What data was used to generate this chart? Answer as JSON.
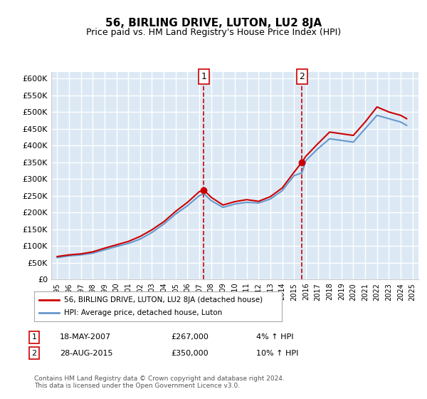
{
  "title": "56, BIRLING DRIVE, LUTON, LU2 8JA",
  "subtitle": "Price paid vs. HM Land Registry's House Price Index (HPI)",
  "legend_line1": "56, BIRLING DRIVE, LUTON, LU2 8JA (detached house)",
  "legend_line2": "HPI: Average price, detached house, Luton",
  "annotation1_label": "1",
  "annotation1_date": "18-MAY-2007",
  "annotation1_price": "£267,000",
  "annotation1_hpi": "4% ↑ HPI",
  "annotation1_year": 2007.38,
  "annotation1_value": 267000,
  "annotation2_label": "2",
  "annotation2_date": "28-AUG-2015",
  "annotation2_price": "£350,000",
  "annotation2_hpi": "10% ↑ HPI",
  "annotation2_year": 2015.66,
  "annotation2_value": 350000,
  "footer": "Contains HM Land Registry data © Crown copyright and database right 2024.\nThis data is licensed under the Open Government Licence v3.0.",
  "ylim": [
    0,
    620000
  ],
  "yticks": [
    0,
    50000,
    100000,
    150000,
    200000,
    250000,
    300000,
    350000,
    400000,
    450000,
    500000,
    550000,
    600000
  ],
  "background_color": "#dce9f5",
  "plot_bg": "#dce9f5",
  "line_color_property": "#cc0000",
  "line_color_hpi": "#6699cc",
  "grid_color": "#ffffff",
  "hpi_years": [
    1995,
    1996,
    1997,
    1998,
    1999,
    2000,
    2001,
    2002,
    2003,
    2004,
    2005,
    2006,
    2007,
    2007.38,
    2008,
    2009,
    2010,
    2011,
    2012,
    2013,
    2014,
    2015,
    2015.66,
    2016,
    2017,
    2018,
    2019,
    2020,
    2021,
    2022,
    2023,
    2024,
    2024.5
  ],
  "hpi_values": [
    65000,
    70000,
    73000,
    78000,
    88000,
    98000,
    107000,
    120000,
    140000,
    165000,
    195000,
    220000,
    250000,
    256000,
    235000,
    215000,
    225000,
    230000,
    228000,
    240000,
    265000,
    310000,
    318000,
    355000,
    390000,
    420000,
    415000,
    410000,
    450000,
    490000,
    480000,
    470000,
    460000
  ],
  "prop_years": [
    1995,
    1996,
    1997,
    1998,
    1999,
    2000,
    2001,
    2002,
    2003,
    2004,
    2005,
    2006,
    2007,
    2007.38,
    2008,
    2009,
    2010,
    2011,
    2012,
    2013,
    2014,
    2015,
    2015.66,
    2016,
    2017,
    2018,
    2019,
    2020,
    2021,
    2022,
    2023,
    2024,
    2024.5
  ],
  "prop_values": [
    68000,
    73000,
    76000,
    82000,
    93000,
    103000,
    113000,
    128000,
    148000,
    172000,
    203000,
    230000,
    262000,
    267000,
    245000,
    222000,
    232000,
    238000,
    233000,
    247000,
    273000,
    320000,
    350000,
    368000,
    405000,
    440000,
    435000,
    430000,
    470000,
    515000,
    500000,
    490000,
    480000
  ]
}
